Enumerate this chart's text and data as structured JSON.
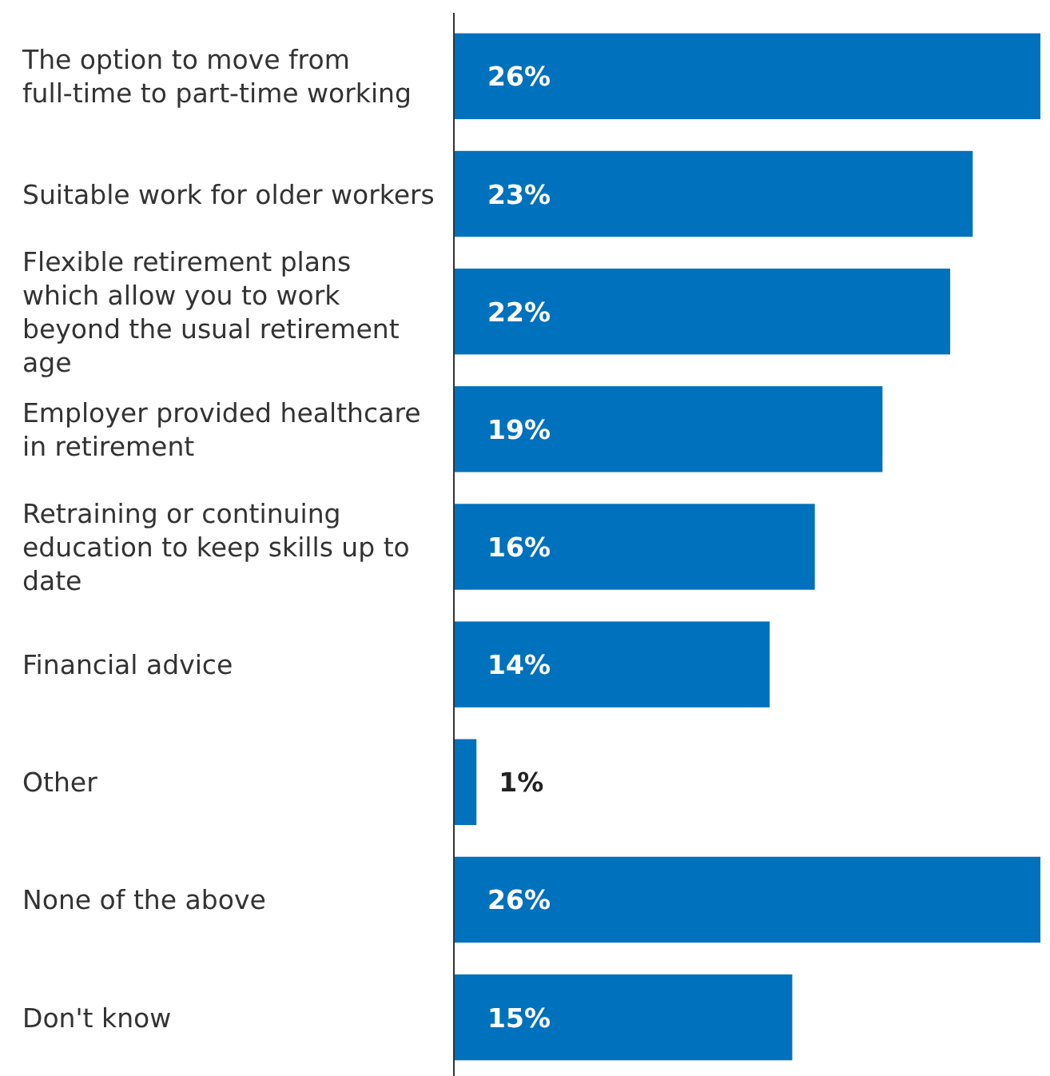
{
  "chart_data": {
    "type": "bar",
    "orientation": "horizontal",
    "categories": [
      "The option to move from full-time to part-time working",
      "Suitable work for older workers",
      "Flexible retirement plans which allow you to work beyond the usual retirement age",
      "Employer provided healthcare in retirement",
      "Retraining or continuing education to keep skills up to date",
      "Financial advice",
      "Other",
      "None of the above",
      "Don't know"
    ],
    "values": [
      26,
      23,
      22,
      19,
      16,
      14,
      1,
      26,
      15
    ],
    "value_labels": [
      "26%",
      "23%",
      "22%",
      "19%",
      "16%",
      "14%",
      "1%",
      "26%",
      "15%"
    ],
    "color": "#0071bc"
  }
}
